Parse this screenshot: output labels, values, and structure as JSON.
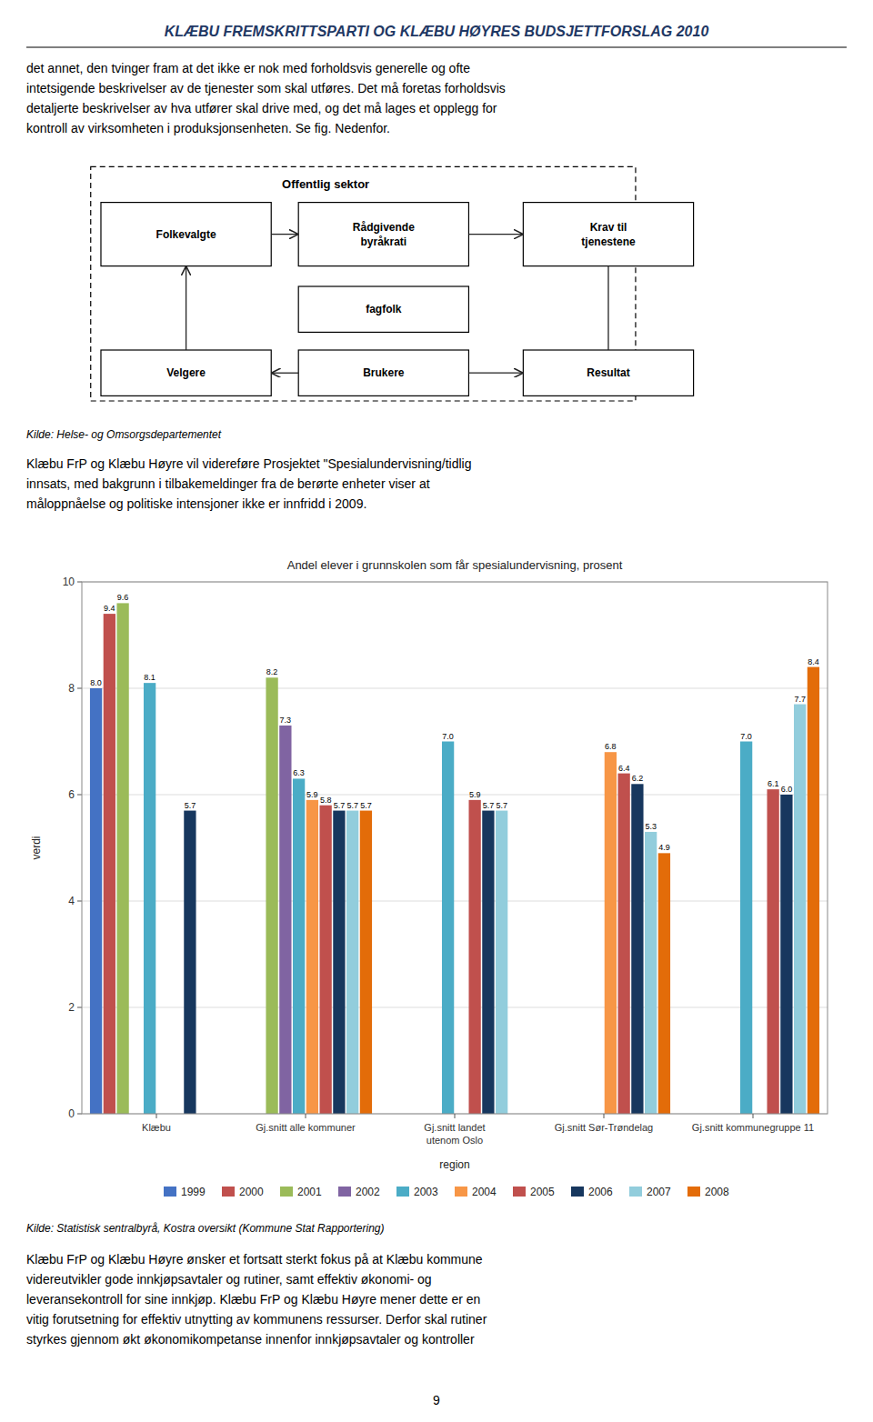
{
  "title": "KLÆBU FREMSKRITTSPARTI OG KLÆBU HØYRES BUDSJETTFORSLAG 2010",
  "body_text_1": "det annet, den tvinger fram at det ikke er nok med forholdsvis generelle og ofte\nintetsigende beskrivelser av de tjenester som skal utføres. Det må foretas forholdsvis\ndetaljerte beskrivelser av hva utfører skal drive med, og det må lages et opplegg for\nkontroll av virksomheten i produksjonsenheten. Se fig. Nedenfor.",
  "diagram": {
    "label": "Offentlig sektor",
    "boxes": [
      "Folkevalgte",
      "Rådgivende\nbyråkrati",
      "Krav til\ntjenestene",
      "fagfolk",
      "Velgere",
      "Brukere",
      "Resultat"
    ]
  },
  "diagram_source": "Kilde: Helse- og Omsorgsdepartementet",
  "body_text_2": "Klæbu FrP og Klæbu Høyre vil videreføre Prosjektet \"Spesialundervisning/tidlig\ninnsats, med bakgrunn i tilbakemeldinger fra de berørte enheter viser at\nmåloppnåelse og politiske intensjoner ikke er innfridd i 2009.",
  "chart_data": {
    "type": "bar",
    "title": "Andel elever i grunnskolen som får spesialundervisning, prosent",
    "xlabel": "region",
    "ylabel": "verdi",
    "categories": [
      "Klæbu",
      "Gj.snitt alle kommuner",
      "Gj.snitt landet\nutenom Oslo",
      "Gj.snitt Sør-Trøndelag",
      "Gj.snitt kommunegruppe 11"
    ],
    "series": [
      {
        "name": "1999",
        "color": "#4472C4",
        "values": [
          8.0,
          null,
          null,
          null,
          null
        ],
        "value_labels": [
          "8.0",
          null,
          null,
          null,
          null
        ]
      },
      {
        "name": "2000",
        "color": "#C0504D",
        "values": [
          9.4,
          null,
          null,
          null,
          null
        ],
        "value_labels": [
          "9.4",
          null,
          null,
          null,
          null
        ]
      },
      {
        "name": "2001",
        "color": "#9BBB59",
        "values": [
          9.6,
          8.2,
          null,
          null,
          null
        ],
        "value_labels": [
          "9.6",
          "8.2",
          null,
          null,
          null
        ]
      },
      {
        "name": "2002",
        "color": "#8064A2",
        "values": [
          null,
          7.3,
          null,
          null,
          null
        ],
        "value_labels": [
          null,
          "7.3",
          null,
          null,
          null
        ]
      },
      {
        "name": "2003",
        "color": "#4BACC6",
        "values": [
          8.1,
          6.3,
          7.0,
          null,
          7.0
        ],
        "value_labels": [
          "8.1",
          "6.3",
          "7.0",
          null,
          "7.0"
        ]
      },
      {
        "name": "2004",
        "color": "#F79646",
        "values": [
          null,
          5.9,
          null,
          6.8,
          null
        ],
        "value_labels": [
          null,
          "5.9",
          null,
          "6.8",
          null
        ]
      },
      {
        "name": "2005",
        "color": "#C0504D",
        "values": [
          null,
          5.8,
          5.9,
          6.4,
          6.1
        ],
        "value_labels": [
          null,
          "5.8",
          "5.9",
          "6.4",
          "6.1"
        ]
      },
      {
        "name": "2006",
        "color": "#17375E",
        "values": [
          5.7,
          5.7,
          5.7,
          6.2,
          6.0
        ],
        "value_labels": [
          "5.7",
          "5.7",
          "5.7",
          "6.2",
          "6.0"
        ]
      },
      {
        "name": "2007",
        "color": "#92CDDC",
        "values": [
          null,
          5.7,
          5.7,
          5.3,
          7.7
        ],
        "value_labels": [
          null,
          "5.7",
          "5.7",
          "5.3",
          "7.7"
        ]
      },
      {
        "name": "2008",
        "color": "#E36C09",
        "values": [
          null,
          5.7,
          null,
          4.9,
          8.4
        ],
        "value_labels": [
          null,
          "5.7",
          null,
          "4.9",
          "8.4"
        ]
      }
    ],
    "ylim": [
      0,
      10
    ],
    "yticks": [
      0,
      2,
      4,
      6,
      8,
      10
    ],
    "grid": true,
    "legend": "bottom",
    "data_labels": true
  },
  "chart_source": "Kilde: Statistisk sentralbyrå, Kostra oversikt (Kommune Stat Rapportering)",
  "body_text_3": "Klæbu FrP og Klæbu Høyre ønsker et fortsatt sterkt fokus på at Klæbu kommune\nvidereutvikler gode innkjøpsavtaler og rutiner, samt effektiv økonomi- og\nleveransekontroll for sine innkjøp. Klæbu FrP og Klæbu Høyre mener dette er en\nvitig forutsetning for effektiv utnytting av kommunens ressurser. Derfor skal rutiner\nstyrkes gjennom økt økonomikompetanse innenfor innkjøpsavtaler og kontroller",
  "page_number": "9"
}
